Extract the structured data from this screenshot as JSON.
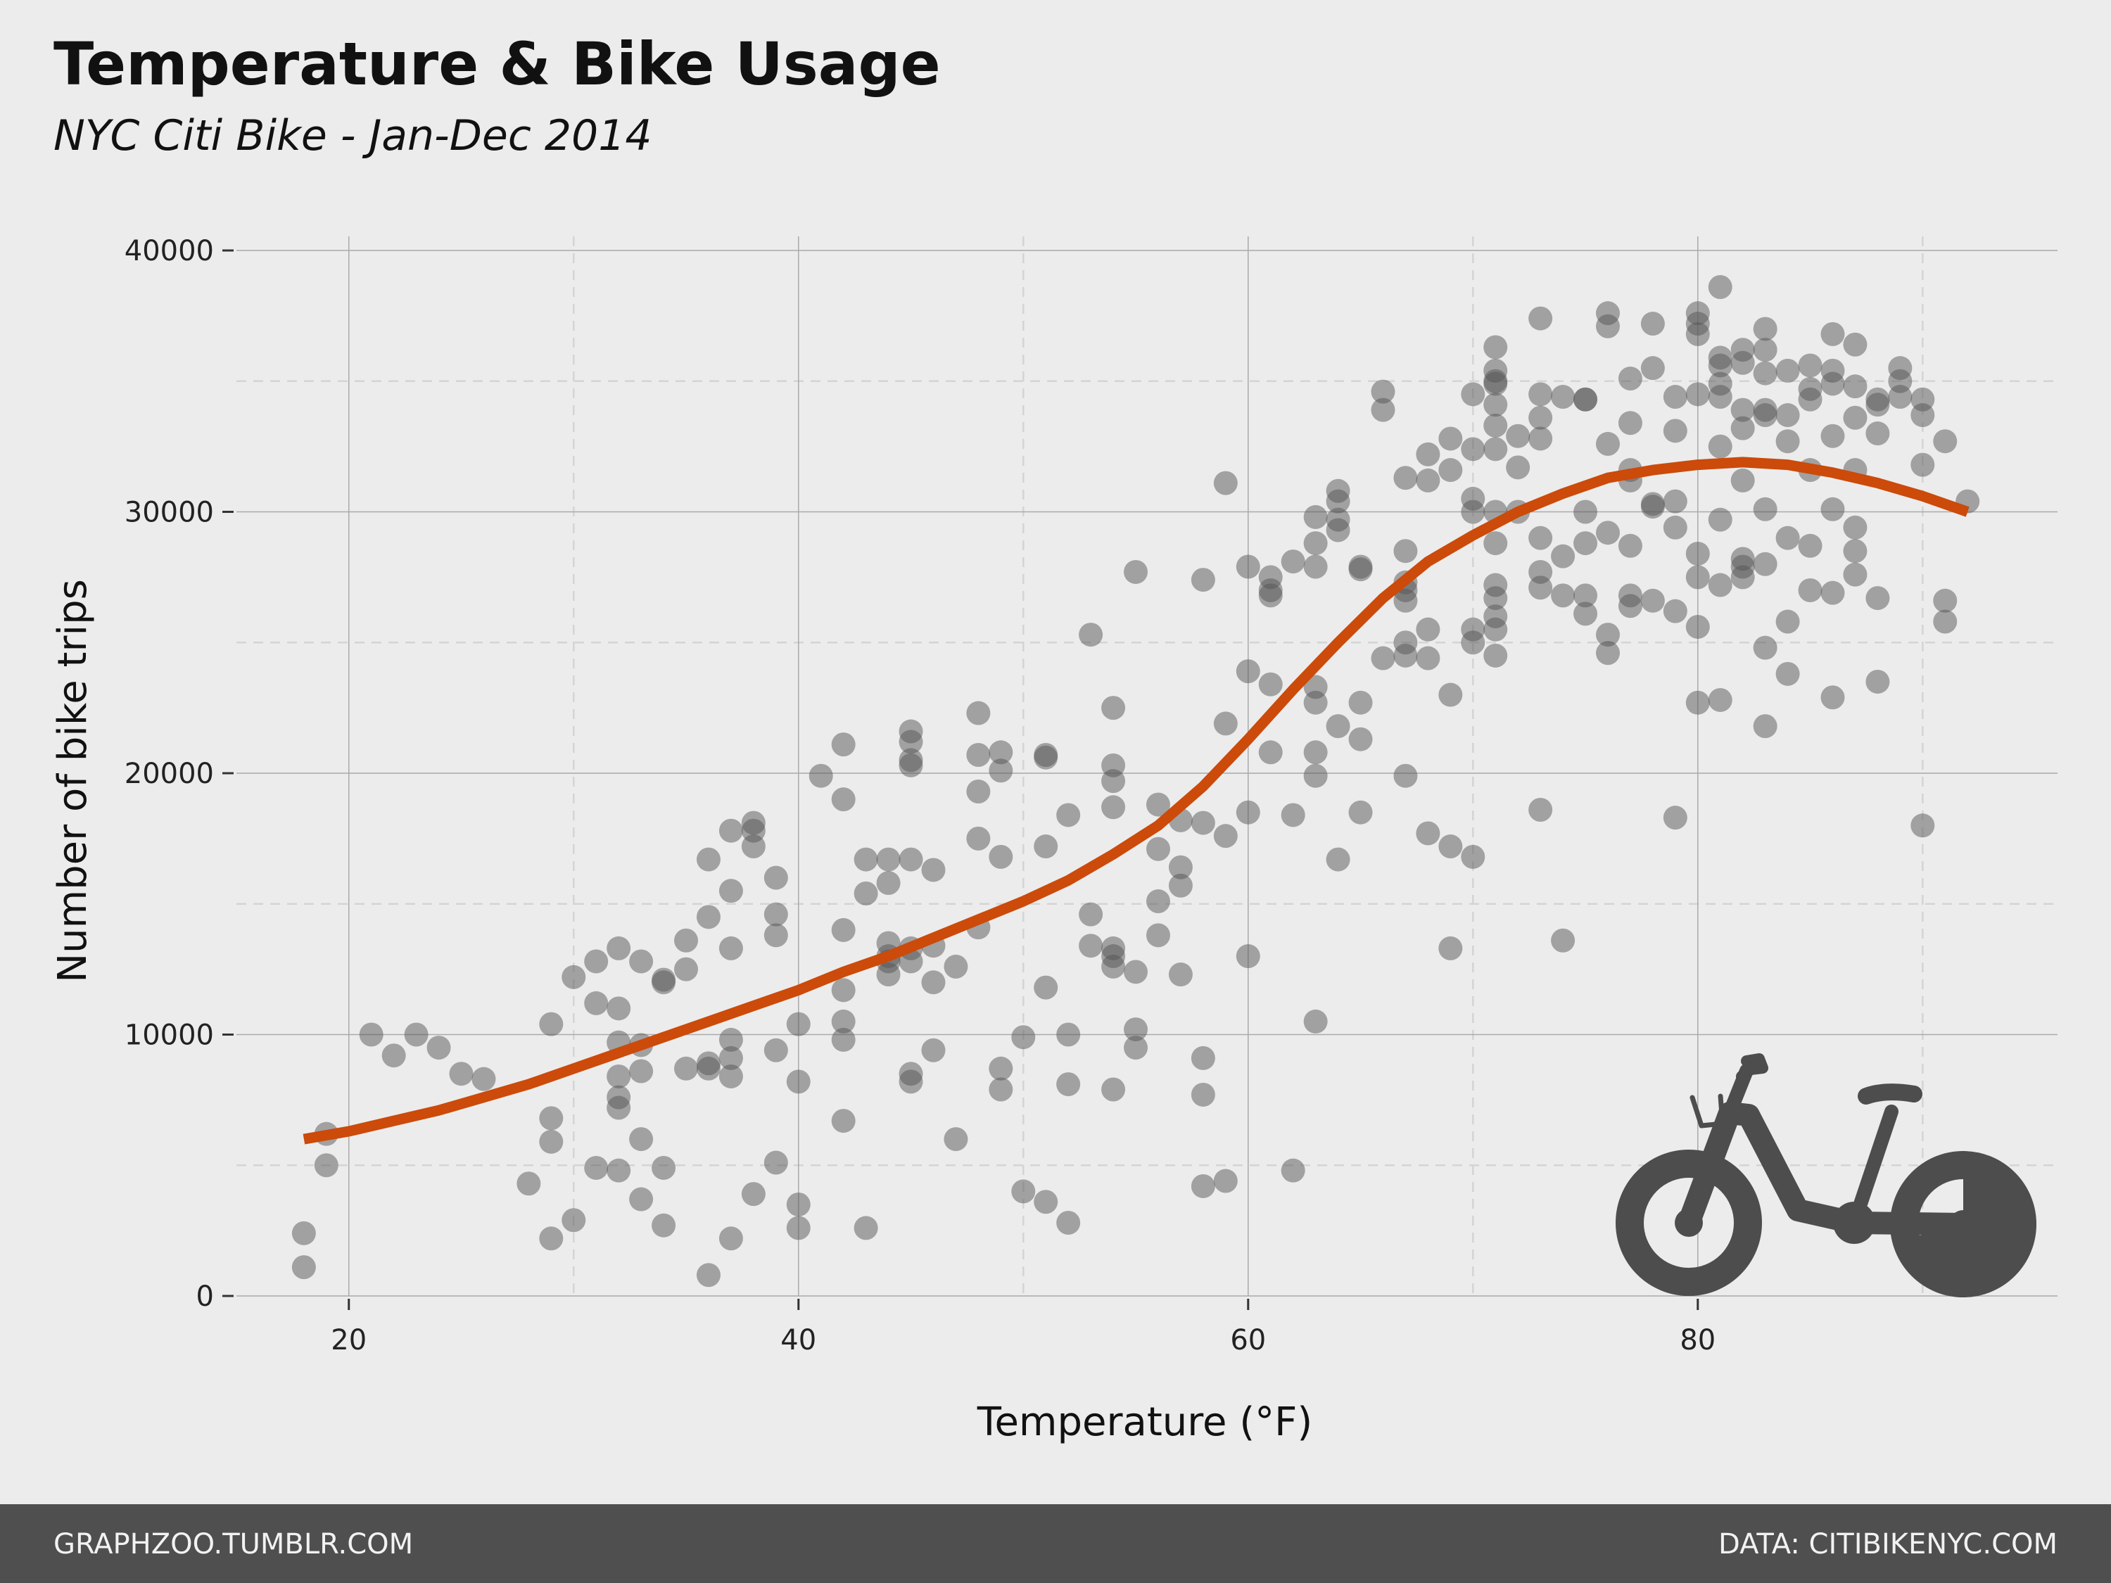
{
  "chart_data": {
    "type": "scatter",
    "title": "Temperature & Bike Usage",
    "subtitle": "NYC Citi Bike - Jan-Dec 2014",
    "xlabel": "Temperature (°F)",
    "ylabel": "Number of bike trips",
    "xlim": [
      15,
      96
    ],
    "ylim": [
      0,
      40000
    ],
    "x_ticks": [
      20,
      40,
      60,
      80
    ],
    "y_ticks": [
      0,
      10000,
      20000,
      30000,
      40000
    ],
    "grid": true,
    "colors": {
      "points": "#555555",
      "trend": "#cc4a0a",
      "icon": "#4d4d4d",
      "footer": "#4f4f4f"
    },
    "points": [
      [
        18,
        2400
      ],
      [
        18,
        1100
      ],
      [
        19,
        6200
      ],
      [
        19,
        5000
      ],
      [
        21,
        10000
      ],
      [
        22,
        9200
      ],
      [
        23,
        10000
      ],
      [
        24,
        9500
      ],
      [
        25,
        8500
      ],
      [
        26,
        8300
      ],
      [
        28,
        4300
      ],
      [
        29,
        10400
      ],
      [
        29,
        6800
      ],
      [
        29,
        5900
      ],
      [
        29,
        2200
      ],
      [
        30,
        12200
      ],
      [
        30,
        2900
      ],
      [
        31,
        12800
      ],
      [
        31,
        11200
      ],
      [
        31,
        4900
      ],
      [
        32,
        13300
      ],
      [
        32,
        11000
      ],
      [
        32,
        9700
      ],
      [
        32,
        8400
      ],
      [
        32,
        7600
      ],
      [
        32,
        7200
      ],
      [
        32,
        4800
      ],
      [
        33,
        12800
      ],
      [
        33,
        9600
      ],
      [
        33,
        8600
      ],
      [
        33,
        6000
      ],
      [
        33,
        3700
      ],
      [
        34,
        12100
      ],
      [
        34,
        12000
      ],
      [
        34,
        4900
      ],
      [
        34,
        2700
      ],
      [
        35,
        13600
      ],
      [
        35,
        12500
      ],
      [
        35,
        8700
      ],
      [
        36,
        16700
      ],
      [
        36,
        14500
      ],
      [
        36,
        8900
      ],
      [
        36,
        8700
      ],
      [
        36,
        800
      ],
      [
        37,
        17800
      ],
      [
        37,
        15500
      ],
      [
        37,
        13300
      ],
      [
        37,
        9800
      ],
      [
        37,
        9100
      ],
      [
        37,
        8400
      ],
      [
        37,
        2200
      ],
      [
        38,
        18100
      ],
      [
        38,
        17800
      ],
      [
        38,
        17200
      ],
      [
        38,
        3900
      ],
      [
        39,
        16000
      ],
      [
        39,
        14600
      ],
      [
        39,
        13800
      ],
      [
        39,
        9400
      ],
      [
        39,
        5100
      ],
      [
        40,
        10400
      ],
      [
        40,
        8200
      ],
      [
        40,
        3500
      ],
      [
        40,
        2600
      ],
      [
        41,
        19900
      ],
      [
        42,
        21100
      ],
      [
        42,
        19000
      ],
      [
        42,
        14000
      ],
      [
        42,
        11700
      ],
      [
        42,
        10500
      ],
      [
        42,
        9800
      ],
      [
        42,
        6700
      ],
      [
        43,
        16700
      ],
      [
        43,
        15400
      ],
      [
        43,
        2600
      ],
      [
        44,
        16700
      ],
      [
        44,
        15800
      ],
      [
        44,
        13500
      ],
      [
        44,
        13000
      ],
      [
        44,
        12800
      ],
      [
        44,
        12300
      ],
      [
        45,
        21600
      ],
      [
        45,
        21200
      ],
      [
        45,
        20500
      ],
      [
        45,
        20300
      ],
      [
        45,
        16700
      ],
      [
        45,
        13300
      ],
      [
        45,
        12800
      ],
      [
        45,
        8500
      ],
      [
        45,
        8200
      ],
      [
        46,
        16300
      ],
      [
        46,
        13400
      ],
      [
        46,
        12000
      ],
      [
        46,
        9400
      ],
      [
        47,
        12600
      ],
      [
        47,
        6000
      ],
      [
        48,
        22300
      ],
      [
        48,
        20700
      ],
      [
        48,
        19300
      ],
      [
        48,
        17500
      ],
      [
        48,
        14100
      ],
      [
        49,
        20800
      ],
      [
        49,
        20100
      ],
      [
        49,
        16800
      ],
      [
        49,
        8700
      ],
      [
        49,
        7900
      ],
      [
        50,
        9900
      ],
      [
        50,
        4000
      ],
      [
        51,
        20700
      ],
      [
        51,
        20600
      ],
      [
        51,
        17200
      ],
      [
        51,
        11800
      ],
      [
        51,
        3600
      ],
      [
        52,
        18400
      ],
      [
        52,
        10000
      ],
      [
        52,
        8100
      ],
      [
        52,
        2800
      ],
      [
        53,
        25300
      ],
      [
        53,
        14600
      ],
      [
        53,
        13400
      ],
      [
        54,
        22500
      ],
      [
        54,
        20300
      ],
      [
        54,
        19700
      ],
      [
        54,
        18700
      ],
      [
        54,
        13300
      ],
      [
        54,
        13000
      ],
      [
        54,
        12600
      ],
      [
        54,
        7900
      ],
      [
        55,
        27700
      ],
      [
        55,
        12400
      ],
      [
        55,
        10200
      ],
      [
        55,
        9500
      ],
      [
        56,
        18800
      ],
      [
        56,
        17100
      ],
      [
        56,
        15100
      ],
      [
        56,
        13800
      ],
      [
        57,
        18200
      ],
      [
        57,
        16400
      ],
      [
        57,
        15700
      ],
      [
        57,
        12300
      ],
      [
        58,
        27400
      ],
      [
        58,
        18100
      ],
      [
        58,
        9100
      ],
      [
        58,
        7700
      ],
      [
        58,
        4200
      ],
      [
        59,
        31100
      ],
      [
        59,
        21900
      ],
      [
        59,
        17600
      ],
      [
        59,
        4400
      ],
      [
        60,
        27900
      ],
      [
        60,
        23900
      ],
      [
        60,
        18500
      ],
      [
        60,
        13000
      ],
      [
        61,
        27500
      ],
      [
        61,
        27000
      ],
      [
        61,
        26800
      ],
      [
        61,
        23400
      ],
      [
        61,
        20800
      ],
      [
        62,
        28100
      ],
      [
        62,
        18400
      ],
      [
        62,
        4800
      ],
      [
        63,
        29800
      ],
      [
        63,
        28800
      ],
      [
        63,
        27900
      ],
      [
        63,
        23300
      ],
      [
        63,
        22700
      ],
      [
        63,
        20800
      ],
      [
        63,
        19900
      ],
      [
        63,
        10500
      ],
      [
        64,
        30800
      ],
      [
        64,
        30400
      ],
      [
        64,
        29700
      ],
      [
        64,
        29300
      ],
      [
        64,
        21800
      ],
      [
        64,
        16700
      ],
      [
        65,
        27900
      ],
      [
        65,
        27800
      ],
      [
        65,
        22700
      ],
      [
        65,
        21300
      ],
      [
        65,
        18500
      ],
      [
        66,
        34600
      ],
      [
        66,
        33900
      ],
      [
        66,
        24400
      ],
      [
        67,
        31300
      ],
      [
        67,
        28500
      ],
      [
        67,
        27300
      ],
      [
        67,
        27000
      ],
      [
        67,
        26600
      ],
      [
        67,
        25000
      ],
      [
        67,
        24500
      ],
      [
        67,
        19900
      ],
      [
        68,
        32200
      ],
      [
        68,
        31200
      ],
      [
        68,
        25500
      ],
      [
        68,
        24400
      ],
      [
        68,
        17700
      ],
      [
        69,
        32800
      ],
      [
        69,
        31600
      ],
      [
        69,
        23000
      ],
      [
        69,
        17200
      ],
      [
        69,
        13300
      ],
      [
        70,
        34500
      ],
      [
        70,
        32400
      ],
      [
        70,
        30500
      ],
      [
        70,
        30000
      ],
      [
        70,
        25500
      ],
      [
        70,
        25000
      ],
      [
        70,
        16800
      ],
      [
        71,
        36300
      ],
      [
        71,
        35400
      ],
      [
        71,
        35000
      ],
      [
        71,
        34900
      ],
      [
        71,
        34100
      ],
      [
        71,
        33300
      ],
      [
        71,
        32400
      ],
      [
        71,
        30000
      ],
      [
        71,
        28800
      ],
      [
        71,
        27200
      ],
      [
        71,
        26700
      ],
      [
        71,
        26000
      ],
      [
        71,
        25500
      ],
      [
        71,
        24500
      ],
      [
        72,
        32900
      ],
      [
        72,
        31700
      ],
      [
        72,
        30000
      ],
      [
        73,
        37400
      ],
      [
        73,
        34500
      ],
      [
        73,
        33600
      ],
      [
        73,
        32800
      ],
      [
        73,
        29000
      ],
      [
        73,
        27700
      ],
      [
        73,
        27100
      ],
      [
        73,
        18600
      ],
      [
        74,
        34400
      ],
      [
        74,
        28300
      ],
      [
        74,
        26800
      ],
      [
        74,
        13600
      ],
      [
        75,
        34300
      ],
      [
        75,
        34300
      ],
      [
        75,
        30000
      ],
      [
        75,
        28800
      ],
      [
        75,
        26800
      ],
      [
        75,
        26100
      ],
      [
        76,
        37600
      ],
      [
        76,
        37100
      ],
      [
        76,
        32600
      ],
      [
        76,
        29200
      ],
      [
        76,
        25300
      ],
      [
        76,
        24600
      ],
      [
        77,
        35100
      ],
      [
        77,
        33400
      ],
      [
        77,
        31600
      ],
      [
        77,
        31200
      ],
      [
        77,
        28700
      ],
      [
        77,
        26800
      ],
      [
        77,
        26400
      ],
      [
        78,
        37200
      ],
      [
        78,
        35500
      ],
      [
        78,
        30300
      ],
      [
        78,
        30200
      ],
      [
        78,
        26600
      ],
      [
        79,
        34400
      ],
      [
        79,
        33100
      ],
      [
        79,
        30400
      ],
      [
        79,
        29400
      ],
      [
        79,
        26200
      ],
      [
        79,
        18300
      ],
      [
        80,
        37600
      ],
      [
        80,
        37200
      ],
      [
        80,
        36800
      ],
      [
        80,
        34500
      ],
      [
        80,
        28400
      ],
      [
        80,
        27500
      ],
      [
        80,
        25600
      ],
      [
        80,
        22700
      ],
      [
        81,
        38600
      ],
      [
        81,
        35900
      ],
      [
        81,
        35600
      ],
      [
        81,
        34900
      ],
      [
        81,
        34400
      ],
      [
        81,
        32500
      ],
      [
        81,
        29700
      ],
      [
        81,
        27200
      ],
      [
        81,
        22800
      ],
      [
        82,
        36200
      ],
      [
        82,
        35700
      ],
      [
        82,
        33900
      ],
      [
        82,
        33200
      ],
      [
        82,
        31200
      ],
      [
        82,
        28200
      ],
      [
        82,
        27900
      ],
      [
        82,
        27500
      ],
      [
        83,
        37000
      ],
      [
        83,
        36200
      ],
      [
        83,
        35300
      ],
      [
        83,
        33900
      ],
      [
        83,
        33700
      ],
      [
        83,
        30100
      ],
      [
        83,
        28000
      ],
      [
        83,
        24800
      ],
      [
        83,
        21800
      ],
      [
        84,
        35400
      ],
      [
        84,
        33700
      ],
      [
        84,
        32700
      ],
      [
        84,
        29000
      ],
      [
        84,
        25800
      ],
      [
        84,
        23800
      ],
      [
        85,
        35600
      ],
      [
        85,
        34700
      ],
      [
        85,
        34300
      ],
      [
        85,
        31600
      ],
      [
        85,
        28700
      ],
      [
        85,
        27000
      ],
      [
        86,
        36800
      ],
      [
        86,
        35400
      ],
      [
        86,
        34900
      ],
      [
        86,
        32900
      ],
      [
        86,
        30100
      ],
      [
        86,
        26900
      ],
      [
        86,
        22900
      ],
      [
        87,
        36400
      ],
      [
        87,
        34800
      ],
      [
        87,
        33600
      ],
      [
        87,
        31600
      ],
      [
        87,
        29400
      ],
      [
        87,
        28500
      ],
      [
        87,
        27600
      ],
      [
        88,
        34300
      ],
      [
        88,
        34100
      ],
      [
        88,
        33000
      ],
      [
        88,
        26700
      ],
      [
        88,
        23500
      ],
      [
        89,
        35500
      ],
      [
        89,
        35000
      ],
      [
        89,
        34400
      ],
      [
        90,
        34300
      ],
      [
        90,
        33700
      ],
      [
        90,
        31800
      ],
      [
        90,
        18000
      ],
      [
        91,
        32700
      ],
      [
        91,
        26600
      ],
      [
        91,
        25800
      ],
      [
        92,
        30400
      ]
    ],
    "trend": [
      [
        18,
        6000
      ],
      [
        20,
        6300
      ],
      [
        22,
        6700
      ],
      [
        24,
        7100
      ],
      [
        26,
        7600
      ],
      [
        28,
        8100
      ],
      [
        30,
        8700
      ],
      [
        32,
        9300
      ],
      [
        34,
        9900
      ],
      [
        36,
        10500
      ],
      [
        38,
        11100
      ],
      [
        40,
        11700
      ],
      [
        42,
        12400
      ],
      [
        44,
        13000
      ],
      [
        46,
        13700
      ],
      [
        48,
        14400
      ],
      [
        50,
        15100
      ],
      [
        52,
        15900
      ],
      [
        54,
        16900
      ],
      [
        56,
        18000
      ],
      [
        58,
        19500
      ],
      [
        60,
        21300
      ],
      [
        62,
        23200
      ],
      [
        64,
        25000
      ],
      [
        66,
        26700
      ],
      [
        68,
        28100
      ],
      [
        70,
        29100
      ],
      [
        72,
        30000
      ],
      [
        74,
        30700
      ],
      [
        76,
        31300
      ],
      [
        78,
        31600
      ],
      [
        80,
        31800
      ],
      [
        82,
        31900
      ],
      [
        84,
        31800
      ],
      [
        86,
        31500
      ],
      [
        88,
        31100
      ],
      [
        90,
        30600
      ],
      [
        92,
        30000
      ]
    ]
  },
  "footer": {
    "left": "GRAPHZOO.TUMBLR.COM",
    "right": "DATA: CITIBIKENYC.COM"
  }
}
